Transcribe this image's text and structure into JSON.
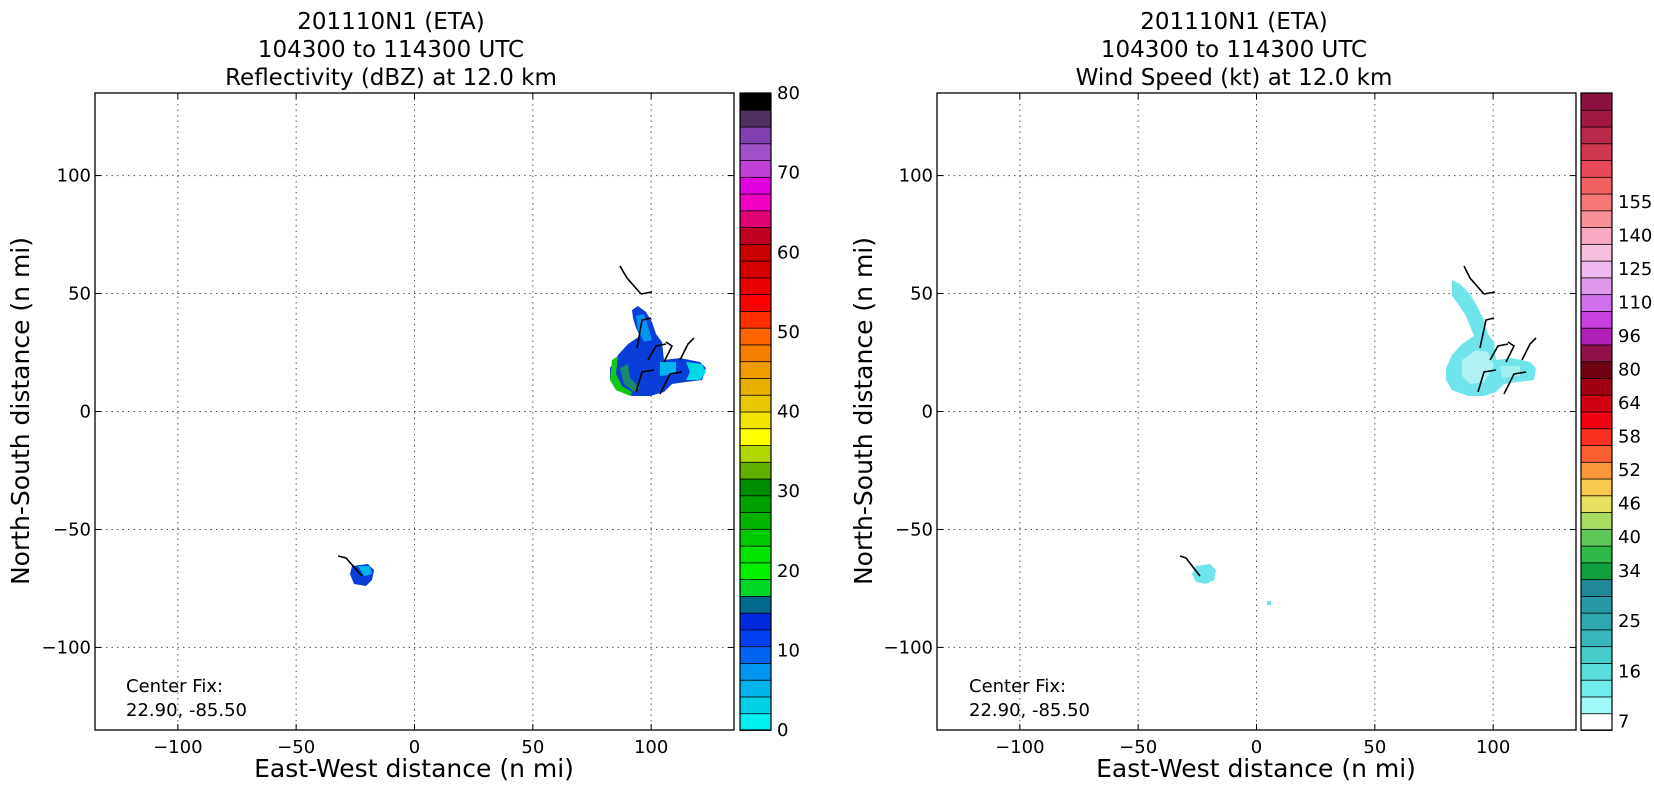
{
  "chart_data": [
    {
      "type": "heatmap",
      "title_lines": [
        "201110N1 (ETA)",
        "104300 to 114300 UTC",
        "Reflectivity (dBZ) at 12.0 km"
      ],
      "xlabel": "East-West distance (n mi)",
      "ylabel": "North-South distance (n mi)",
      "xlim": [
        -135,
        135
      ],
      "ylim": [
        -135,
        135
      ],
      "xticks": [
        -100,
        -50,
        0,
        50,
        100
      ],
      "yticks": [
        -100,
        -50,
        0,
        50,
        100
      ],
      "xtick_labels": [
        "−100",
        "−50",
        "0",
        "50",
        "100"
      ],
      "ytick_labels": [
        "−100",
        "−50",
        "0",
        "50",
        "100"
      ],
      "grid": true,
      "annotation_lines": [
        "Center Fix:",
        "22.90, -85.50"
      ],
      "colorbar": {
        "ticks": [
          "0",
          "10",
          "20",
          "30",
          "40",
          "50",
          "60",
          "70",
          "80"
        ],
        "colors": [
          "#00f0f0",
          "#00d2e6",
          "#00b4eb",
          "#0096f0",
          "#0064f0",
          "#0040f0",
          "#0028dc",
          "#00698c",
          "#00d828",
          "#00f000",
          "#00e400",
          "#00cc00",
          "#00b400",
          "#00a000",
          "#008c00",
          "#60b000",
          "#b0d800",
          "#ffff00",
          "#f0e400",
          "#e8c800",
          "#e8b000",
          "#f09c00",
          "#f58000",
          "#ff6400",
          "#ff3000",
          "#ff0000",
          "#e80000",
          "#d40000",
          "#c80000",
          "#c00020",
          "#e00070",
          "#f000c0",
          "#e000e0",
          "#c040d8",
          "#a050c8",
          "#8040b0",
          "#503060",
          "#000000"
        ]
      },
      "echo_regions": [
        {
          "center": [
            100,
            23
          ],
          "extent": "x 85-125, y 7-45"
        },
        {
          "center": [
            -22,
            -69
          ],
          "extent": "x -26 to -17, y -74 to -65"
        }
      ]
    },
    {
      "type": "heatmap",
      "title_lines": [
        "201110N1 (ETA)",
        "104300 to 114300 UTC",
        "Wind Speed (kt) at 12.0 km"
      ],
      "xlabel": "East-West distance (n mi)",
      "ylabel": "North-South distance (n mi)",
      "xlim": [
        -135,
        135
      ],
      "ylim": [
        -135,
        135
      ],
      "xticks": [
        -100,
        -50,
        0,
        50,
        100
      ],
      "yticks": [
        -100,
        -50,
        0,
        50,
        100
      ],
      "xtick_labels": [
        "−100",
        "−50",
        "0",
        "50",
        "100"
      ],
      "ytick_labels": [
        "−100",
        "−50",
        "0",
        "50",
        "100"
      ],
      "grid": true,
      "annotation_lines": [
        "Center Fix:",
        "22.90, -85.50"
      ],
      "colorbar": {
        "tick_labels": [
          "7",
          "16",
          "25",
          "34",
          "40",
          "46",
          "52",
          "58",
          "64",
          "80",
          "96",
          "110",
          "125",
          "140",
          "155"
        ],
        "tick_levels": [
          7,
          16,
          25,
          34,
          40,
          46,
          52,
          58,
          64,
          80,
          96,
          110,
          125,
          140,
          155
        ],
        "levels": [
          7,
          10,
          13,
          16,
          19,
          22,
          25,
          28,
          31,
          34,
          37,
          40,
          43,
          46,
          49,
          52,
          55,
          58,
          61,
          64,
          72,
          80,
          88,
          96,
          103,
          110,
          118,
          125,
          133,
          140,
          148,
          155,
          163
        ],
        "colors": [
          "#ffffff",
          "#a0f8f8",
          "#70ecec",
          "#58dcdc",
          "#48cccc",
          "#38b8bc",
          "#30a8b0",
          "#2898a4",
          "#208898",
          "#10a040",
          "#30b848",
          "#60c858",
          "#a8dc60",
          "#e8e060",
          "#f8c850",
          "#f89838",
          "#f86030",
          "#f83020",
          "#f00010",
          "#d00010",
          "#a00010",
          "#700010",
          "#901048",
          "#b020b8",
          "#c840e0",
          "#d070ec",
          "#e098ec",
          "#f0b8f0",
          "#f8c0e0",
          "#f8a8c0",
          "#f89098",
          "#f87878",
          "#f06060",
          "#e84858",
          "#d03850",
          "#b82848",
          "#a01840",
          "#8c1040"
        ]
      },
      "echo_regions": [
        {
          "center": [
            97,
            28
          ],
          "extent": "x 83-120, y 7-62"
        },
        {
          "center": [
            -21,
            -69
          ],
          "extent": "x -26 to -17, y -73 to -65"
        },
        {
          "center": [
            5,
            -81
          ],
          "extent": "point"
        }
      ]
    }
  ]
}
